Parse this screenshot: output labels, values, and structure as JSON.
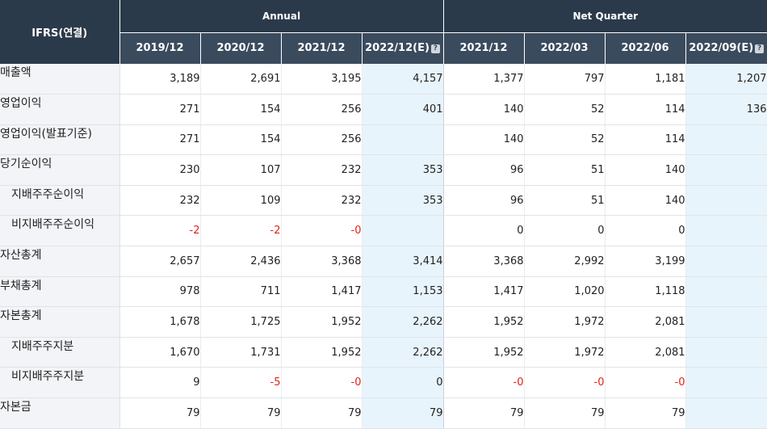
{
  "table": {
    "corner_label": "IFRS(연결)",
    "groups": [
      {
        "label": "Annual",
        "span": 4
      },
      {
        "label": "Net Quarter",
        "span": 4
      }
    ],
    "periods": [
      {
        "label": "2019/12",
        "estimate": false
      },
      {
        "label": "2020/12",
        "estimate": false
      },
      {
        "label": "2021/12",
        "estimate": false
      },
      {
        "label": "2022/12(E)",
        "estimate": true
      },
      {
        "label": "2021/12",
        "estimate": false
      },
      {
        "label": "2022/03",
        "estimate": false
      },
      {
        "label": "2022/06",
        "estimate": false
      },
      {
        "label": "2022/09(E)",
        "estimate": true
      }
    ],
    "estimate_icon_name": "help-icon",
    "estimate_icon_glyph": "?",
    "negative_color": "#e0221b",
    "rows": [
      {
        "label": "매출액",
        "indent": false,
        "values": [
          "3,189",
          "2,691",
          "3,195",
          "4,157",
          "1,377",
          "797",
          "1,181",
          "1,207"
        ]
      },
      {
        "label": "영업이익",
        "indent": false,
        "values": [
          "271",
          "154",
          "256",
          "401",
          "140",
          "52",
          "114",
          "136"
        ]
      },
      {
        "label": "영업이익(발표기준)",
        "indent": false,
        "values": [
          "271",
          "154",
          "256",
          "",
          "140",
          "52",
          "114",
          ""
        ]
      },
      {
        "label": "당기순이익",
        "indent": false,
        "values": [
          "230",
          "107",
          "232",
          "353",
          "96",
          "51",
          "140",
          ""
        ]
      },
      {
        "label": "지배주주순이익",
        "indent": true,
        "values": [
          "232",
          "109",
          "232",
          "353",
          "96",
          "51",
          "140",
          ""
        ]
      },
      {
        "label": "비지배주주순이익",
        "indent": true,
        "values": [
          "-2",
          "-2",
          "-0",
          "",
          "0",
          "0",
          "0",
          ""
        ]
      },
      {
        "label": "자산총계",
        "indent": false,
        "values": [
          "2,657",
          "2,436",
          "3,368",
          "3,414",
          "3,368",
          "2,992",
          "3,199",
          ""
        ]
      },
      {
        "label": "부채총계",
        "indent": false,
        "values": [
          "978",
          "711",
          "1,417",
          "1,153",
          "1,417",
          "1,020",
          "1,118",
          ""
        ]
      },
      {
        "label": "자본총계",
        "indent": false,
        "values": [
          "1,678",
          "1,725",
          "1,952",
          "2,262",
          "1,952",
          "1,972",
          "2,081",
          ""
        ]
      },
      {
        "label": "지배주주지분",
        "indent": true,
        "values": [
          "1,670",
          "1,731",
          "1,952",
          "2,262",
          "1,952",
          "1,972",
          "2,081",
          ""
        ]
      },
      {
        "label": "비지배주주지분",
        "indent": true,
        "values": [
          "9",
          "-5",
          "-0",
          "0",
          "-0",
          "-0",
          "-0",
          ""
        ]
      },
      {
        "label": "자본금",
        "indent": false,
        "values": [
          "79",
          "79",
          "79",
          "79",
          "79",
          "79",
          "79",
          ""
        ]
      }
    ]
  }
}
